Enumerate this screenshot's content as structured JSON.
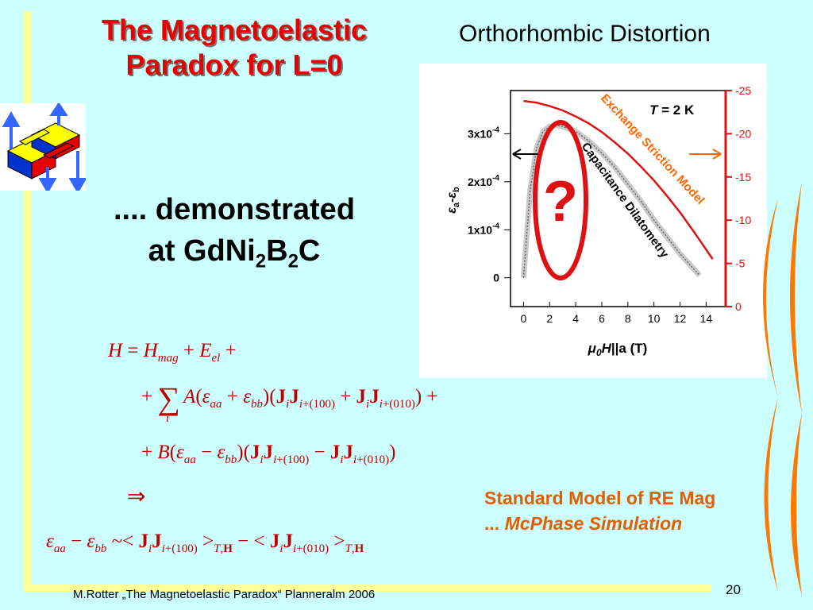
{
  "slide": {
    "title_line1": "The Magnetoelastic",
    "title_line2": "Paradox for L=0",
    "subtitle": "Orthorhombic Distortion",
    "demo_line1": ".... demonstrated",
    "demo_line2_prefix": "at GdNi",
    "demo_sub1": "2",
    "demo_mid": "B",
    "demo_sub2": "2",
    "demo_suffix": "C",
    "standard_model": "Standard Model of RE Mag",
    "mcphase_prefix": "... ",
    "mcphase": "McPhase Simulation",
    "footer": "M.Rotter „The Magnetoelastic Paradox“ Planneralm 2006",
    "page_number": "20"
  },
  "chart_data": {
    "type": "line",
    "annotation_temperature_var": "T",
    "annotation_temperature_value": "= 2 K",
    "question_mark": "?",
    "label_exchange": "Exchange Striction Model",
    "label_capacitance": "Capacitance Dilatometry",
    "xlabel_mu": "μ",
    "xlabel_sub": "0",
    "xlabel_H": "H",
    "xlabel_rest": "||a  (T)",
    "ylabel_left_eps_a": "ε",
    "ylabel_left_sub_a": "a",
    "ylabel_left_minus": "-",
    "ylabel_left_eps_b": "ε",
    "ylabel_left_sub_b": "b",
    "xlim": [
      -1,
      15.5
    ],
    "x_ticks": [
      "0",
      "2",
      "4",
      "6",
      "8",
      "10",
      "12",
      "14"
    ],
    "x_tick_values": [
      0,
      2,
      4,
      6,
      8,
      10,
      12,
      14
    ],
    "ylim_left": [
      -0.6,
      3.9
    ],
    "y_left_ticks": [
      {
        "value": 0,
        "mant": "0",
        "exp": ""
      },
      {
        "value": 1,
        "mant": "1x10",
        "exp": "-4"
      },
      {
        "value": 2,
        "mant": "2x10",
        "exp": "-4"
      },
      {
        "value": 3,
        "mant": "3x10",
        "exp": "-4"
      }
    ],
    "ylim_right": [
      0,
      25
    ],
    "y_right_ticks": [
      "0",
      "-5",
      "-10",
      "-15",
      "-20",
      "-25"
    ],
    "y_right_tick_values": [
      0,
      5,
      10,
      15,
      20,
      25
    ],
    "series": [
      {
        "name": "Capacitance Dilatometry",
        "x": [
          0,
          0.5,
          1,
          1.5,
          2,
          2.5,
          3,
          4,
          5,
          6,
          7,
          8,
          9,
          10,
          11,
          12,
          13,
          13.5
        ],
        "y": [
          0,
          1.8,
          2.7,
          3.05,
          3.15,
          3.18,
          3.15,
          3.05,
          2.85,
          2.6,
          2.3,
          1.95,
          1.6,
          1.2,
          0.85,
          0.5,
          0.2,
          0.05
        ]
      },
      {
        "name": "Exchange Striction Model",
        "x": [
          0,
          1,
          2,
          3,
          4,
          5,
          6,
          7,
          8,
          9,
          10,
          11,
          12,
          13,
          14,
          14.5
        ],
        "y": [
          23.8,
          23.6,
          23.2,
          22.7,
          22.0,
          21.2,
          20.2,
          19.0,
          17.7,
          16.2,
          14.6,
          12.8,
          10.9,
          8.8,
          6.6,
          5.5
        ]
      }
    ],
    "colors": {
      "exchange": "#dd1111",
      "exchange_label": "#ff6600",
      "arrow_right": "#ff6600",
      "dilatometry": "#888888",
      "ring": "#dd1111"
    }
  },
  "equations": {
    "line1": "H = H_mag + E_el +",
    "line2": "+ Σ_i A(ε_aa + ε_bb)(J_i J_i+(100) + J_i J_i+(010)) +",
    "line3": "+ B(ε_aa − ε_bb)(J_i J_i+(100) − J_i J_i+(010))",
    "implies": "⇒",
    "line5": "ε_aa − ε_bb ~< J_i J_i+(100) >_T,H − < J_i J_i+(010) >_T,H"
  },
  "icons": {
    "logo": "lattice-structure-icon"
  }
}
